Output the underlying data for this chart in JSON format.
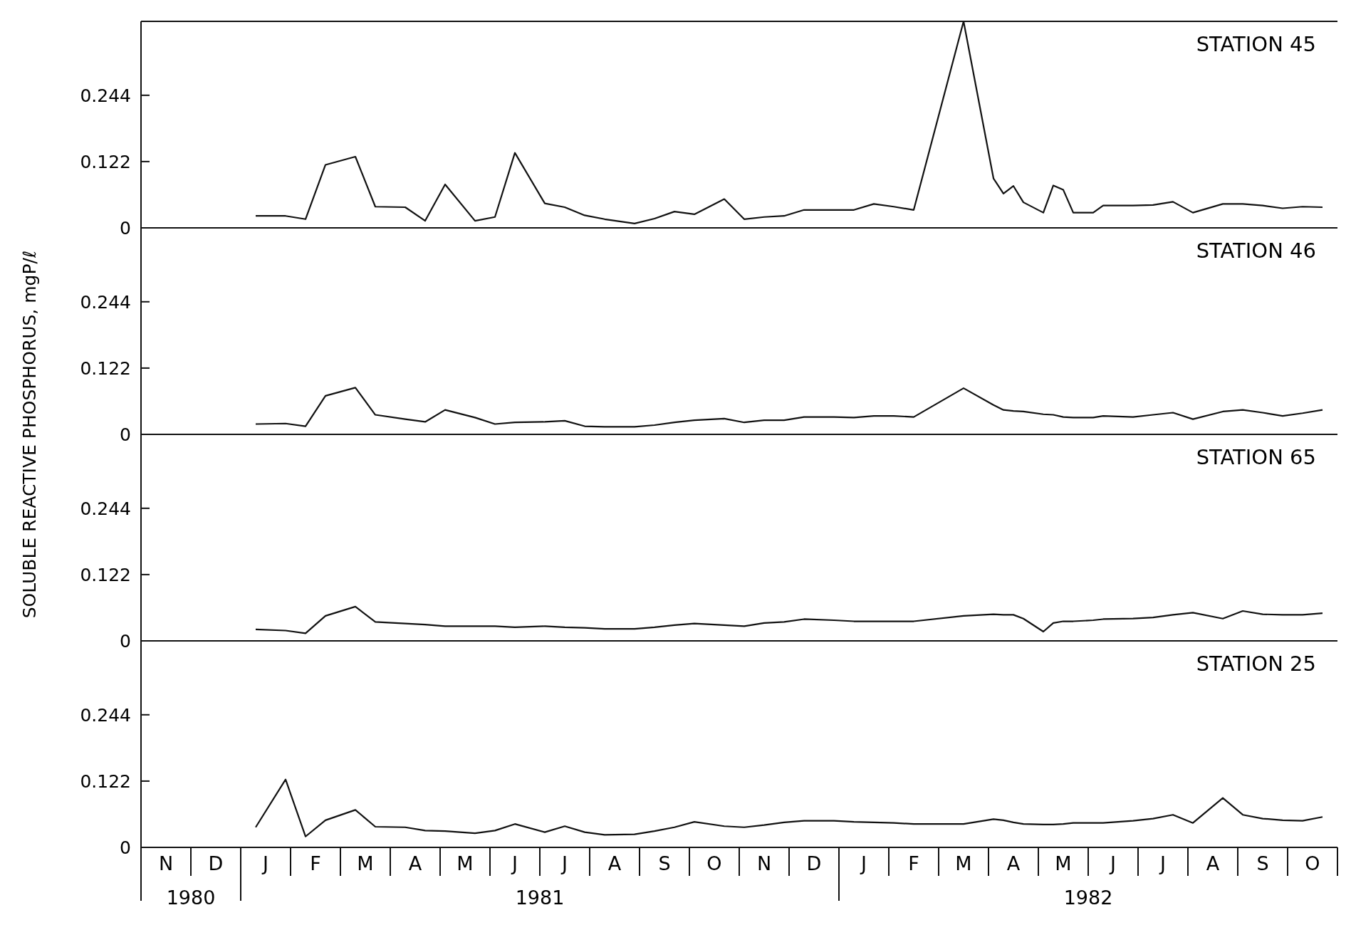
{
  "chart_data": [
    {
      "type": "line",
      "title": "STATION 45",
      "ylabel": "SOLUBLE REACTIVE PHOSPHORUS, mgP/ℓ",
      "tick_labels": "y",
      "ylim": [
        0,
        0.38
      ],
      "yticks": [
        0,
        0.122,
        0.244
      ],
      "series": [
        {
          "color": "#111111",
          "values": [
            null,
            null,
            null,
            null,
            null,
            null,
            null,
            null,
            null,
            null,
            null,
            0.022,
            null,
            null,
            0.022,
            null,
            0.016,
            null,
            0.116,
            null,
            null,
            0.131,
            null,
            0.039,
            null,
            null,
            0.038,
            null,
            0.013,
            null,
            0.08,
            null,
            null,
            0.013,
            null,
            0.02,
            null,
            0.138,
            null,
            null,
            0.045,
            null,
            0.038,
            null,
            0.023,
            null,
            0.016,
            null,
            null,
            0.008,
            null,
            0.017,
            null,
            0.03,
            null,
            0.025,
            null,
            null,
            0.053,
            null,
            0.016,
            null,
            0.02,
            null,
            0.022,
            null,
            0.033,
            null,
            null,
            0.033,
            null,
            0.033,
            null,
            0.044,
            null,
            0.039,
            null,
            0.033,
            null,
            null,
            null,
            null,
            0.38,
            null,
            null,
            0.091,
            0.063,
            0.077,
            0.047,
            null,
            0.028,
            0.078,
            0.07,
            0.028,
            null,
            0.028,
            0.041,
            null,
            null,
            0.041,
            null,
            0.042,
            null,
            0.048,
            null,
            0.028,
            null,
            null,
            0.044,
            null,
            0.044,
            null,
            0.041,
            null,
            0.036,
            null,
            0.039,
            null,
            0.038,
            null
          ]
        }
      ]
    },
    {
      "type": "line",
      "title": "STATION 46",
      "tick_labels": "y",
      "ylim": [
        0,
        0.38
      ],
      "yticks": [
        0,
        0.122,
        0.244
      ],
      "series": [
        {
          "color": "#111111",
          "values": [
            null,
            null,
            null,
            null,
            null,
            null,
            null,
            null,
            null,
            null,
            null,
            0.019,
            null,
            null,
            0.02,
            null,
            0.015,
            null,
            0.071,
            null,
            null,
            0.086,
            null,
            0.036,
            null,
            null,
            0.028,
            null,
            0.023,
            null,
            0.045,
            null,
            null,
            0.031,
            null,
            0.019,
            null,
            0.022,
            null,
            null,
            0.023,
            null,
            0.025,
            null,
            0.015,
            null,
            0.014,
            null,
            null,
            0.014,
            null,
            0.017,
            null,
            0.022,
            null,
            0.026,
            null,
            null,
            0.029,
            null,
            0.022,
            null,
            0.026,
            null,
            0.026,
            null,
            0.032,
            null,
            null,
            0.032,
            null,
            0.031,
            null,
            0.034,
            null,
            0.034,
            null,
            0.032,
            null,
            null,
            null,
            null,
            0.085,
            null,
            null,
            0.054,
            0.045,
            0.043,
            0.042,
            null,
            0.037,
            0.036,
            0.032,
            0.031,
            null,
            0.031,
            0.034,
            null,
            null,
            0.032,
            null,
            0.036,
            null,
            0.04,
            null,
            0.028,
            null,
            null,
            0.042,
            null,
            0.045,
            null,
            0.04,
            null,
            0.034,
            null,
            0.039,
            null,
            0.045,
            null
          ]
        }
      ]
    },
    {
      "type": "line",
      "title": "STATION 65",
      "tick_labels": "y",
      "ylim": [
        0,
        0.38
      ],
      "yticks": [
        0,
        0.122,
        0.244
      ],
      "series": [
        {
          "color": "#111111",
          "values": [
            null,
            null,
            null,
            null,
            null,
            null,
            null,
            null,
            null,
            null,
            null,
            0.021,
            null,
            null,
            0.019,
            null,
            0.014,
            null,
            0.046,
            null,
            null,
            0.063,
            null,
            0.035,
            null,
            null,
            0.032,
            null,
            0.03,
            null,
            0.027,
            null,
            null,
            0.027,
            null,
            0.027,
            null,
            0.025,
            null,
            null,
            0.027,
            null,
            0.025,
            null,
            0.024,
            null,
            0.022,
            null,
            null,
            0.022,
            null,
            0.025,
            null,
            0.029,
            null,
            0.032,
            null,
            null,
            0.029,
            null,
            0.027,
            null,
            0.033,
            null,
            0.035,
            null,
            0.04,
            null,
            null,
            0.038,
            null,
            0.036,
            null,
            0.036,
            null,
            0.036,
            null,
            0.036,
            null,
            null,
            null,
            null,
            0.046,
            null,
            null,
            0.049,
            0.048,
            0.048,
            0.041,
            null,
            0.017,
            0.033,
            0.036,
            0.036,
            null,
            0.038,
            0.04,
            null,
            null,
            0.041,
            null,
            0.043,
            null,
            0.048,
            null,
            0.052,
            null,
            null,
            0.041,
            null,
            0.055,
            null,
            0.049,
            null,
            0.048,
            null,
            0.048,
            null,
            0.051,
            null
          ]
        }
      ]
    },
    {
      "type": "line",
      "title": "STATION 25",
      "ylim": [
        0,
        0.38
      ],
      "yticks": [
        0,
        0.122,
        0.244
      ],
      "categories": [
        null,
        null,
        "N",
        null,
        null,
        null,
        null,
        "D",
        null,
        null,
        null,
        null,
        "J",
        null,
        null,
        null,
        null,
        "F",
        null,
        null,
        null,
        null,
        "M",
        null,
        null,
        null,
        null,
        "A",
        null,
        null,
        null,
        null,
        "M",
        null,
        null,
        null,
        null,
        "J",
        null,
        null,
        null,
        null,
        "J",
        null,
        null,
        null,
        null,
        "A",
        null,
        null,
        null,
        null,
        "S",
        null,
        null,
        null,
        null,
        "O",
        null,
        null,
        null,
        null,
        "N",
        null,
        null,
        null,
        null,
        "D",
        null,
        null,
        null,
        null,
        "J",
        null,
        null,
        null,
        null,
        "F",
        null,
        null,
        null,
        null,
        "M",
        null,
        null,
        null,
        null,
        "A",
        null,
        null,
        null,
        null,
        "M",
        null,
        null,
        null,
        null,
        "J",
        null,
        null,
        null,
        null,
        "J",
        null,
        null,
        null,
        null,
        "A",
        null,
        null,
        null,
        null,
        "S",
        null,
        null,
        null,
        null,
        "O",
        null,
        null
      ],
      "annotations": [
        "1980",
        "1981",
        "1982"
      ],
      "series": [
        {
          "color": "#111111",
          "values": [
            null,
            null,
            null,
            null,
            null,
            null,
            null,
            null,
            null,
            null,
            null,
            0.037,
            null,
            null,
            0.125,
            null,
            0.02,
            null,
            0.05,
            null,
            null,
            0.069,
            null,
            0.038,
            null,
            null,
            0.037,
            null,
            0.031,
            null,
            0.03,
            null,
            null,
            0.026,
            null,
            0.031,
            null,
            0.043,
            null,
            null,
            0.028,
            null,
            0.039,
            null,
            0.028,
            null,
            0.023,
            null,
            null,
            0.024,
            null,
            0.03,
            null,
            0.037,
            null,
            0.047,
            null,
            null,
            0.039,
            null,
            0.037,
            null,
            0.041,
            null,
            0.046,
            null,
            0.049,
            null,
            null,
            0.049,
            null,
            0.047,
            null,
            0.046,
            null,
            0.045,
            null,
            0.043,
            null,
            null,
            null,
            null,
            0.043,
            null,
            null,
            0.052,
            0.05,
            0.046,
            0.043,
            null,
            0.042,
            0.042,
            0.043,
            0.045,
            null,
            0.045,
            0.045,
            null,
            null,
            0.049,
            null,
            0.053,
            null,
            0.06,
            null,
            0.045,
            null,
            null,
            0.091,
            null,
            0.06,
            null,
            0.053,
            null,
            0.05,
            null,
            0.049,
            null,
            0.056,
            null
          ]
        }
      ]
    }
  ]
}
